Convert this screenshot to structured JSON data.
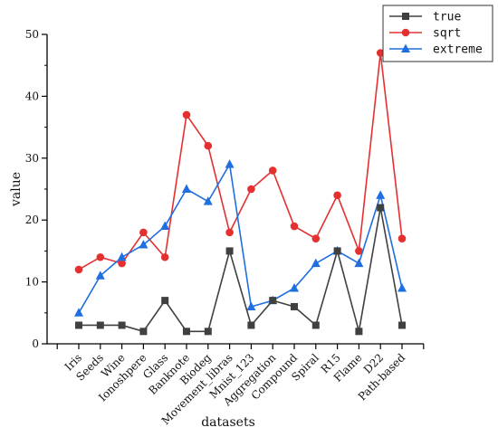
{
  "chart_data": {
    "type": "line",
    "xlabel": "datasets",
    "ylabel": "value",
    "ylim": [
      0,
      50
    ],
    "yticks": [
      0,
      10,
      20,
      30,
      40,
      50
    ],
    "grid": false,
    "legend_position": "top-right",
    "categories": [
      "Iris",
      "Seeds",
      "Wine",
      "Ionoshpere",
      "Glass",
      "Banknote",
      "Biodeg",
      "Movement_libras",
      "Mnist_123",
      "Aggregation",
      "Compound",
      "Spiral",
      "R15",
      "Flame",
      "D22",
      "Path-based"
    ],
    "series": [
      {
        "name": "true",
        "color": "#404040",
        "marker": "square",
        "values": [
          3,
          3,
          3,
          2,
          7,
          2,
          2,
          15,
          3,
          7,
          6,
          3,
          15,
          2,
          22,
          3
        ]
      },
      {
        "name": "sqrt",
        "color": "#e53030",
        "marker": "circle",
        "values": [
          12,
          14,
          13,
          18,
          14,
          37,
          32,
          18,
          25,
          28,
          19,
          17,
          24,
          15,
          47,
          17
        ]
      },
      {
        "name": "extreme",
        "color": "#1f6fe0",
        "marker": "triangle",
        "values": [
          5,
          11,
          14,
          16,
          19,
          25,
          23,
          29,
          6,
          7,
          9,
          13,
          15,
          13,
          24,
          9
        ]
      }
    ]
  }
}
